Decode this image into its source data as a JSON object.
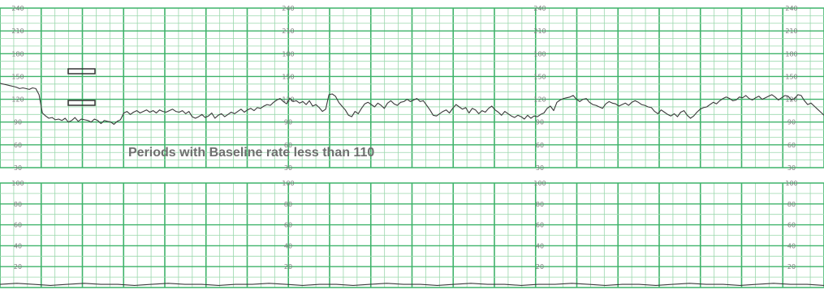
{
  "chart_data": [
    {
      "type": "line",
      "name_hint": "fetal heart rate panel",
      "title": "",
      "xlabel": "",
      "ylabel": "",
      "ylim": [
        30,
        240
      ],
      "y_ticks": [
        "240",
        "210",
        "180",
        "150",
        "120",
        "90",
        "60",
        "30"
      ],
      "annotation": "Periods with Baseline rate less than 110",
      "series": [
        {
          "values": [
            141,
            140,
            139,
            138,
            137,
            136,
            134,
            135,
            134,
            133,
            135,
            134,
            126,
            102,
            98,
            95,
            96,
            93,
            94,
            92,
            95,
            90,
            92,
            96,
            91,
            94,
            93,
            92,
            90,
            94,
            92,
            88,
            92,
            91,
            90,
            87,
            91,
            93,
            102,
            104,
            100,
            103,
            105,
            102,
            104,
            106,
            103,
            105,
            102,
            106,
            104,
            103,
            105,
            107,
            104,
            103,
            105,
            101,
            104,
            97,
            95,
            97,
            100,
            96,
            98,
            102,
            95,
            99,
            101,
            97,
            100,
            103,
            101,
            104,
            107,
            103,
            106,
            108,
            105,
            109,
            108,
            111,
            113,
            112,
            116,
            119,
            121,
            117,
            114,
            121,
            117,
            118,
            115,
            117,
            113,
            118,
            111,
            113,
            109,
            104,
            107,
            126,
            127,
            124,
            116,
            111,
            106,
            99,
            97,
            104,
            101,
            108,
            114,
            116,
            113,
            110,
            115,
            112,
            108,
            115,
            118,
            114,
            112,
            116,
            117,
            120,
            117,
            119,
            121,
            117,
            118,
            112,
            106,
            99,
            98,
            101,
            104,
            106,
            102,
            108,
            113,
            110,
            107,
            109,
            102,
            108,
            106,
            101,
            105,
            103,
            108,
            111,
            106,
            103,
            99,
            104,
            101,
            98,
            96,
            99,
            97,
            94,
            99,
            95,
            98,
            97,
            100,
            102,
            108,
            111,
            105,
            116,
            119,
            121,
            122,
            123,
            125,
            120,
            117,
            120,
            121,
            116,
            113,
            112,
            110,
            108,
            114,
            117,
            115,
            114,
            111,
            113,
            115,
            112,
            116,
            118,
            116,
            113,
            112,
            110,
            109,
            104,
            101,
            106,
            103,
            100,
            98,
            101,
            97,
            103,
            105,
            99,
            95,
            98,
            103,
            107,
            109,
            110,
            113,
            116,
            114,
            118,
            121,
            123,
            121,
            118,
            119,
            123,
            122,
            125,
            121,
            119,
            122,
            124,
            120,
            122,
            124,
            126,
            123,
            119,
            122,
            125,
            124,
            119,
            121,
            126,
            125,
            118,
            113,
            115,
            111,
            107,
            103,
            99
          ]
        }
      ]
    },
    {
      "type": "line",
      "name_hint": "uterine activity panel",
      "title": "",
      "xlabel": "",
      "ylabel": "",
      "ylim": [
        0,
        100
      ],
      "y_ticks": [
        "100",
        "80",
        "60",
        "40",
        "20"
      ],
      "series": [
        {
          "values": [
            3,
            4,
            3,
            2,
            3,
            4,
            3,
            3,
            2,
            3,
            4,
            3,
            3,
            2,
            3,
            3,
            4,
            3,
            2,
            3,
            3,
            2,
            3,
            4,
            3,
            3,
            2,
            3,
            4,
            3,
            3,
            2,
            3,
            3,
            4,
            3,
            2,
            3,
            3,
            2,
            3,
            4,
            3,
            3,
            2,
            3,
            4,
            3,
            3,
            2
          ]
        }
      ]
    }
  ],
  "style": {
    "grid_color": "#3fb36a",
    "grid_fine_color": "#9bd8ad",
    "trace_color": "#3a3a3a",
    "marker_color": "#333333"
  }
}
